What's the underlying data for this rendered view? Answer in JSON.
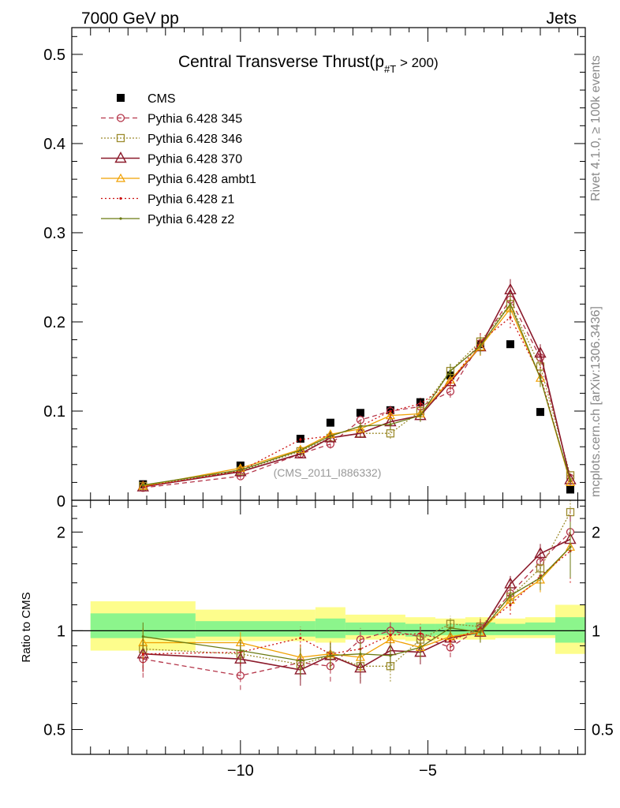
{
  "header": {
    "left": "7000 GeV pp",
    "right": "Jets"
  },
  "side_labels": {
    "rivet": "Rivet 4.1.0, ≥ 100k events",
    "mcplots": "mcplots.cern.ch [arXiv:1306.3436]"
  },
  "title": {
    "main": "Central Transverse Thrust(p",
    "sub": "#T",
    "tail": " > 200)"
  },
  "analysis_label": "(CMS_2011_I886332)",
  "ratio_ylabel": "Ratio to CMS",
  "colors": {
    "cms": "#000000",
    "p345": "#b5364a",
    "p346": "#9c8b2c",
    "p370": "#8b1a2b",
    "ambt1": "#f0a000",
    "z1": "#cc1111",
    "z2": "#6b7a12",
    "band_yellow": "#fdfd8c",
    "band_green": "#8cf58c"
  },
  "chart_data": {
    "type": "line",
    "x": [
      -12.6,
      -10.0,
      -8.4,
      -7.6,
      -6.8,
      -6.0,
      -5.2,
      -4.4,
      -3.6,
      -2.8,
      -2.0,
      -1.2
    ],
    "main": {
      "ylim": [
        0,
        0.53
      ],
      "xlim": [
        -14.5,
        -0.8
      ],
      "yticks": [
        0.1,
        0.2,
        0.3,
        0.4,
        0.5
      ],
      "ytick_labels": [
        "0.1",
        "0.2",
        "0.3",
        "0.4",
        "0.5"
      ],
      "ytick_zero_label": "0",
      "series": [
        {
          "name": "CMS",
          "key": "cms",
          "values": [
            0.018,
            0.039,
            0.069,
            0.087,
            0.098,
            0.101,
            0.11,
            0.14,
            0.175,
            0.175,
            0.099,
            0.012
          ]
        },
        {
          "name": "Pythia 6.428 345",
          "key": "p345",
          "values": [
            0.014,
            0.027,
            0.052,
            0.063,
            0.09,
            0.1,
            0.105,
            0.122,
            0.176,
            0.225,
            0.16,
            0.025
          ],
          "err": [
            0.003,
            0.003,
            0.004,
            0.005,
            0.005,
            0.006,
            0.007,
            0.007,
            0.01,
            0.012,
            0.01,
            0.004
          ]
        },
        {
          "name": "Pythia 6.428 346",
          "key": "p346",
          "values": [
            0.016,
            0.033,
            0.055,
            0.07,
            0.075,
            0.075,
            0.1,
            0.145,
            0.178,
            0.22,
            0.15,
            0.028
          ],
          "err": [
            0.003,
            0.003,
            0.004,
            0.005,
            0.005,
            0.006,
            0.007,
            0.008,
            0.01,
            0.012,
            0.01,
            0.004
          ]
        },
        {
          "name": "Pythia 6.428 370",
          "key": "p370",
          "values": [
            0.015,
            0.032,
            0.052,
            0.07,
            0.075,
            0.088,
            0.095,
            0.133,
            0.172,
            0.236,
            0.165,
            0.023
          ],
          "err": [
            0.003,
            0.003,
            0.004,
            0.005,
            0.005,
            0.006,
            0.007,
            0.008,
            0.01,
            0.012,
            0.01,
            0.004
          ]
        },
        {
          "name": "Pythia 6.428 ambt1",
          "key": "ambt1",
          "values": [
            0.016,
            0.036,
            0.057,
            0.074,
            0.08,
            0.095,
            0.097,
            0.135,
            0.172,
            0.215,
            0.137,
            0.02
          ],
          "err": [
            0.003,
            0.003,
            0.004,
            0.005,
            0.005,
            0.006,
            0.007,
            0.008,
            0.01,
            0.012,
            0.01,
            0.004
          ]
        },
        {
          "name": "Pythia 6.428 z1",
          "key": "z1",
          "values": [
            0.015,
            0.033,
            0.068,
            0.072,
            0.083,
            0.1,
            0.108,
            0.132,
            0.178,
            0.205,
            0.14,
            0.021
          ],
          "err": [
            0.003,
            0.003,
            0.004,
            0.005,
            0.005,
            0.006,
            0.007,
            0.008,
            0.01,
            0.012,
            0.01,
            0.004
          ]
        },
        {
          "name": "Pythia 6.428 z2",
          "key": "z2",
          "values": [
            0.017,
            0.034,
            0.056,
            0.072,
            0.083,
            0.085,
            0.095,
            0.145,
            0.173,
            0.22,
            0.137,
            0.022
          ],
          "err": [
            0.003,
            0.003,
            0.004,
            0.005,
            0.005,
            0.006,
            0.007,
            0.008,
            0.01,
            0.012,
            0.01,
            0.004
          ]
        }
      ]
    },
    "ratio": {
      "ylim_log": [
        0.42,
        2.5
      ],
      "yticks": [
        0.5,
        1,
        2
      ],
      "ytick_labels": [
        "0.5",
        "1",
        "2"
      ],
      "xticks": [
        -10,
        -5
      ],
      "xtick_labels": [
        "−10",
        "−5"
      ],
      "band_bins": [
        {
          "x0": -14.0,
          "x1": -11.2,
          "yellow": [
            0.87,
            1.23
          ],
          "green": [
            0.95,
            1.13
          ]
        },
        {
          "x0": -11.2,
          "x1": -8.0,
          "yellow": [
            0.93,
            1.16
          ],
          "green": [
            0.96,
            1.07
          ]
        },
        {
          "x0": -8.0,
          "x1": -7.2,
          "yellow": [
            0.92,
            1.18
          ],
          "green": [
            0.95,
            1.09
          ]
        },
        {
          "x0": -7.2,
          "x1": -5.6,
          "yellow": [
            0.94,
            1.12
          ],
          "green": [
            0.97,
            1.06
          ]
        },
        {
          "x0": -5.6,
          "x1": -4.8,
          "yellow": [
            0.93,
            1.1
          ],
          "green": [
            0.96,
            1.05
          ]
        },
        {
          "x0": -4.8,
          "x1": -4.0,
          "yellow": [
            0.94,
            1.09
          ],
          "green": [
            0.97,
            1.05
          ]
        },
        {
          "x0": -4.0,
          "x1": -3.2,
          "yellow": [
            0.94,
            1.1
          ],
          "green": [
            0.97,
            1.06
          ]
        },
        {
          "x0": -3.2,
          "x1": -2.4,
          "yellow": [
            0.95,
            1.09
          ],
          "green": [
            0.97,
            1.05
          ]
        },
        {
          "x0": -2.4,
          "x1": -1.6,
          "yellow": [
            0.95,
            1.1
          ],
          "green": [
            0.97,
            1.06
          ]
        },
        {
          "x0": -1.6,
          "x1": -0.8,
          "yellow": [
            0.85,
            1.2
          ],
          "green": [
            0.92,
            1.1
          ]
        }
      ],
      "series": [
        {
          "key": "p345",
          "values": [
            0.82,
            0.73,
            0.8,
            0.78,
            0.94,
            1.0,
            0.96,
            0.89,
            1.02,
            1.3,
            1.62,
            2.0
          ],
          "err": [
            0.1,
            0.07,
            0.08,
            0.08,
            0.08,
            0.08,
            0.07,
            0.06,
            0.07,
            0.08,
            0.12,
            0.35
          ]
        },
        {
          "key": "p346",
          "values": [
            0.88,
            0.85,
            0.79,
            0.84,
            0.78,
            0.78,
            0.94,
            1.05,
            1.03,
            1.27,
            1.55,
            2.3
          ],
          "err": [
            0.1,
            0.07,
            0.08,
            0.08,
            0.08,
            0.08,
            0.07,
            0.06,
            0.07,
            0.08,
            0.12,
            0.4
          ]
        },
        {
          "key": "p370",
          "values": [
            0.85,
            0.82,
            0.76,
            0.84,
            0.77,
            0.87,
            0.86,
            0.95,
            0.99,
            1.39,
            1.72,
            1.9
          ],
          "err": [
            0.1,
            0.07,
            0.08,
            0.08,
            0.08,
            0.08,
            0.07,
            0.06,
            0.07,
            0.08,
            0.12,
            0.35
          ]
        },
        {
          "key": "ambt1",
          "values": [
            0.92,
            0.92,
            0.83,
            0.85,
            0.83,
            0.94,
            0.89,
            0.96,
            0.99,
            1.24,
            1.43,
            1.8
          ],
          "err": [
            0.1,
            0.07,
            0.08,
            0.08,
            0.08,
            0.08,
            0.07,
            0.06,
            0.07,
            0.08,
            0.12,
            0.35
          ]
        },
        {
          "key": "z1",
          "values": [
            0.85,
            0.86,
            0.95,
            0.85,
            0.88,
            0.97,
            0.98,
            0.93,
            1.02,
            1.2,
            1.47,
            1.75
          ],
          "err": [
            0.1,
            0.07,
            0.08,
            0.08,
            0.08,
            0.08,
            0.07,
            0.06,
            0.07,
            0.08,
            0.12,
            0.35
          ]
        },
        {
          "key": "z2",
          "values": [
            0.96,
            0.87,
            0.81,
            0.84,
            0.85,
            0.84,
            0.89,
            1.02,
            0.99,
            1.28,
            1.45,
            1.8
          ],
          "err": [
            0.1,
            0.07,
            0.08,
            0.08,
            0.08,
            0.08,
            0.07,
            0.06,
            0.07,
            0.08,
            0.12,
            0.35
          ]
        }
      ]
    },
    "legend": [
      {
        "label": "CMS",
        "key": "cms"
      },
      {
        "label": "Pythia 6.428 345",
        "key": "p345"
      },
      {
        "label": "Pythia 6.428 346",
        "key": "p346"
      },
      {
        "label": "Pythia 6.428 370",
        "key": "p370"
      },
      {
        "label": "Pythia 6.428 ambt1",
        "key": "ambt1"
      },
      {
        "label": "Pythia 6.428 z1",
        "key": "z1"
      },
      {
        "label": "Pythia 6.428 z2",
        "key": "z2"
      }
    ]
  }
}
